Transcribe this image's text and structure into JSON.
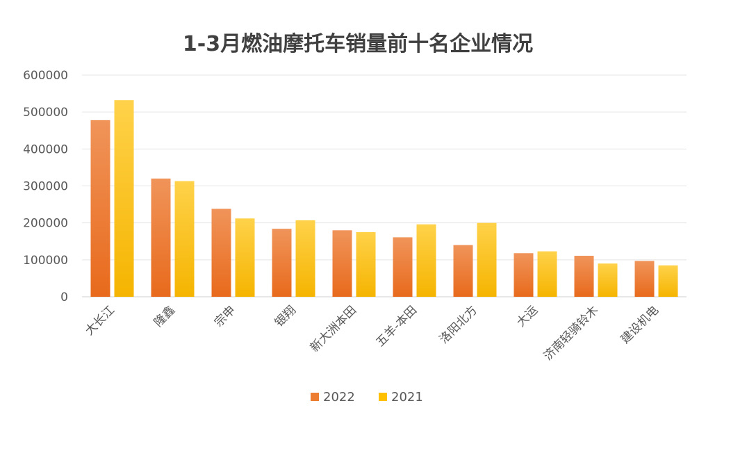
{
  "chart_data": {
    "type": "bar",
    "title": "1-3月燃油摩托车销量前十名企业情况",
    "categories": [
      "大长江",
      "隆鑫",
      "宗申",
      "银翔",
      "新大洲本田",
      "五羊-本田",
      "洛阳北方",
      "大运",
      "济南轻骑铃木",
      "建设机电"
    ],
    "series": [
      {
        "name": "2022",
        "color": "#ED7D31",
        "values": [
          478000,
          320000,
          238000,
          184000,
          180000,
          161000,
          140000,
          118000,
          111000,
          97000
        ]
      },
      {
        "name": "2021",
        "color": "#FFC000",
        "values": [
          532000,
          313000,
          212000,
          207000,
          175000,
          196000,
          200000,
          123000,
          90000,
          85000
        ]
      }
    ],
    "yticks": [
      0,
      100000,
      200000,
      300000,
      400000,
      500000,
      600000
    ],
    "ylim": [
      0,
      600000
    ],
    "grid": true,
    "legend": "bottom"
  }
}
